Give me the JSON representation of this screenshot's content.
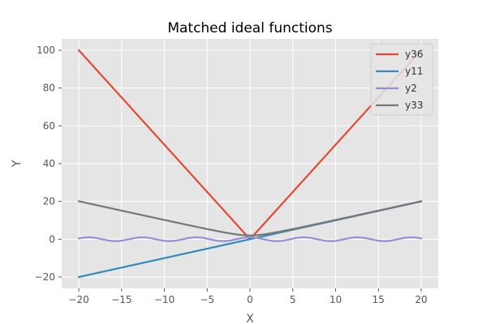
{
  "chart_data": {
    "type": "line",
    "title": "Matched ideal functions",
    "xlabel": "X",
    "ylabel": "Y",
    "xlim": [
      -22,
      22
    ],
    "ylim": [
      -26,
      106
    ],
    "xticks": [
      -20,
      -15,
      -10,
      -5,
      0,
      5,
      10,
      15,
      20
    ],
    "yticks": [
      -20,
      0,
      20,
      40,
      60,
      80,
      100
    ],
    "grid": true,
    "legend": "top-right",
    "style": "ggplot",
    "series": [
      {
        "name": "y36",
        "color": "#E24A33",
        "formula": "5*abs(x)",
        "x": [
          -20,
          0,
          20
        ],
        "y": [
          100,
          0,
          100
        ]
      },
      {
        "name": "y11",
        "color": "#348ABD",
        "formula": "x",
        "x": [
          -20,
          20
        ],
        "y": [
          -20,
          20
        ]
      },
      {
        "name": "y2",
        "color": "#988ED5",
        "formula": "cos(x)",
        "x": [
          -20,
          20
        ],
        "y": [
          0.41,
          0.41
        ]
      },
      {
        "name": "y33",
        "color": "#777777",
        "formula": "sqrt(x^2+4)",
        "x": [
          -20,
          0,
          20
        ],
        "y": [
          20.1,
          2,
          20.1
        ]
      }
    ]
  }
}
